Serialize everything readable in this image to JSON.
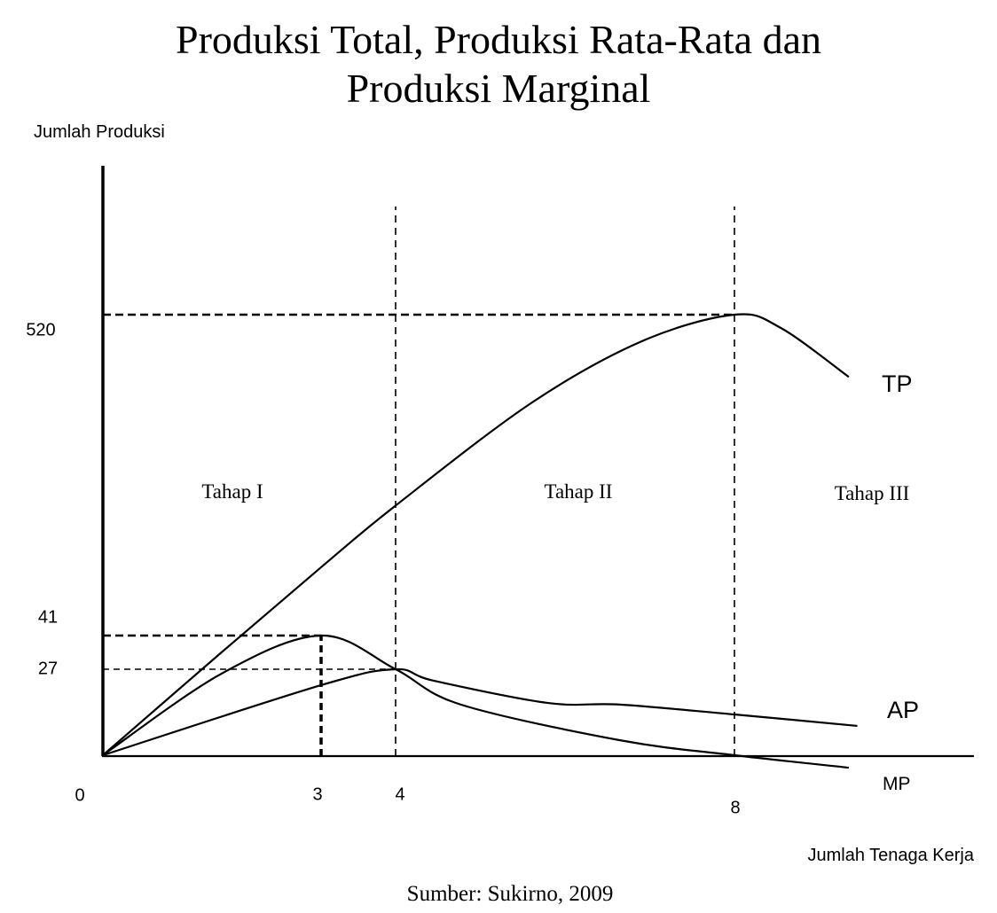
{
  "chart_data": {
    "type": "line",
    "title_lines": [
      "Produksi Total, Produksi Rata-Rata dan",
      "Produksi Marginal"
    ],
    "ylabel": "Jumlah Produksi",
    "xlabel": "Jumlah Tenaga Kerja",
    "source": "Sumber: Sukirno, 2009",
    "x_ticks": [
      "0",
      "3",
      "4",
      "8"
    ],
    "y_ticks": [
      "520",
      "41",
      "27"
    ],
    "stages": [
      "Tahap I",
      "Tahap II",
      "Tahap III"
    ],
    "series": [
      {
        "name": "TP",
        "points": [
          [
            0,
            0
          ],
          [
            1.63,
            34
          ],
          [
            3,
            143
          ],
          [
            4,
            235
          ],
          [
            5.6,
            388
          ],
          [
            6.9,
            480
          ],
          [
            8,
            520
          ],
          [
            8.55,
            500
          ],
          [
            9.35,
            427
          ]
        ]
      },
      {
        "name": "AP",
        "points": [
          [
            0,
            0
          ],
          [
            3,
            22
          ],
          [
            4,
            27
          ],
          [
            4.45,
            23.4
          ],
          [
            5.8,
            16.4
          ],
          [
            6.65,
            15.9
          ],
          [
            8,
            12.8
          ],
          [
            9.45,
            9.2
          ]
        ]
      },
      {
        "name": "MP",
        "points": [
          [
            0,
            0
          ],
          [
            1.63,
            25.6
          ],
          [
            3,
            41
          ],
          [
            4,
            27
          ],
          [
            4.77,
            15.9
          ],
          [
            6.65,
            4.7
          ],
          [
            8,
            0
          ],
          [
            9.35,
            -3.9
          ]
        ]
      }
    ],
    "reference_lines": {
      "horizontal": [
        {
          "y": 520,
          "to_x": 8
        },
        {
          "y": 41,
          "to_x": 3
        },
        {
          "y": 27,
          "to_x": 4
        }
      ],
      "vertical": [
        {
          "x": 3,
          "to_y": 41
        },
        {
          "x": 4,
          "full": true
        },
        {
          "x": 8,
          "full": true
        }
      ]
    },
    "grid": false,
    "ticks_proportional": false
  }
}
